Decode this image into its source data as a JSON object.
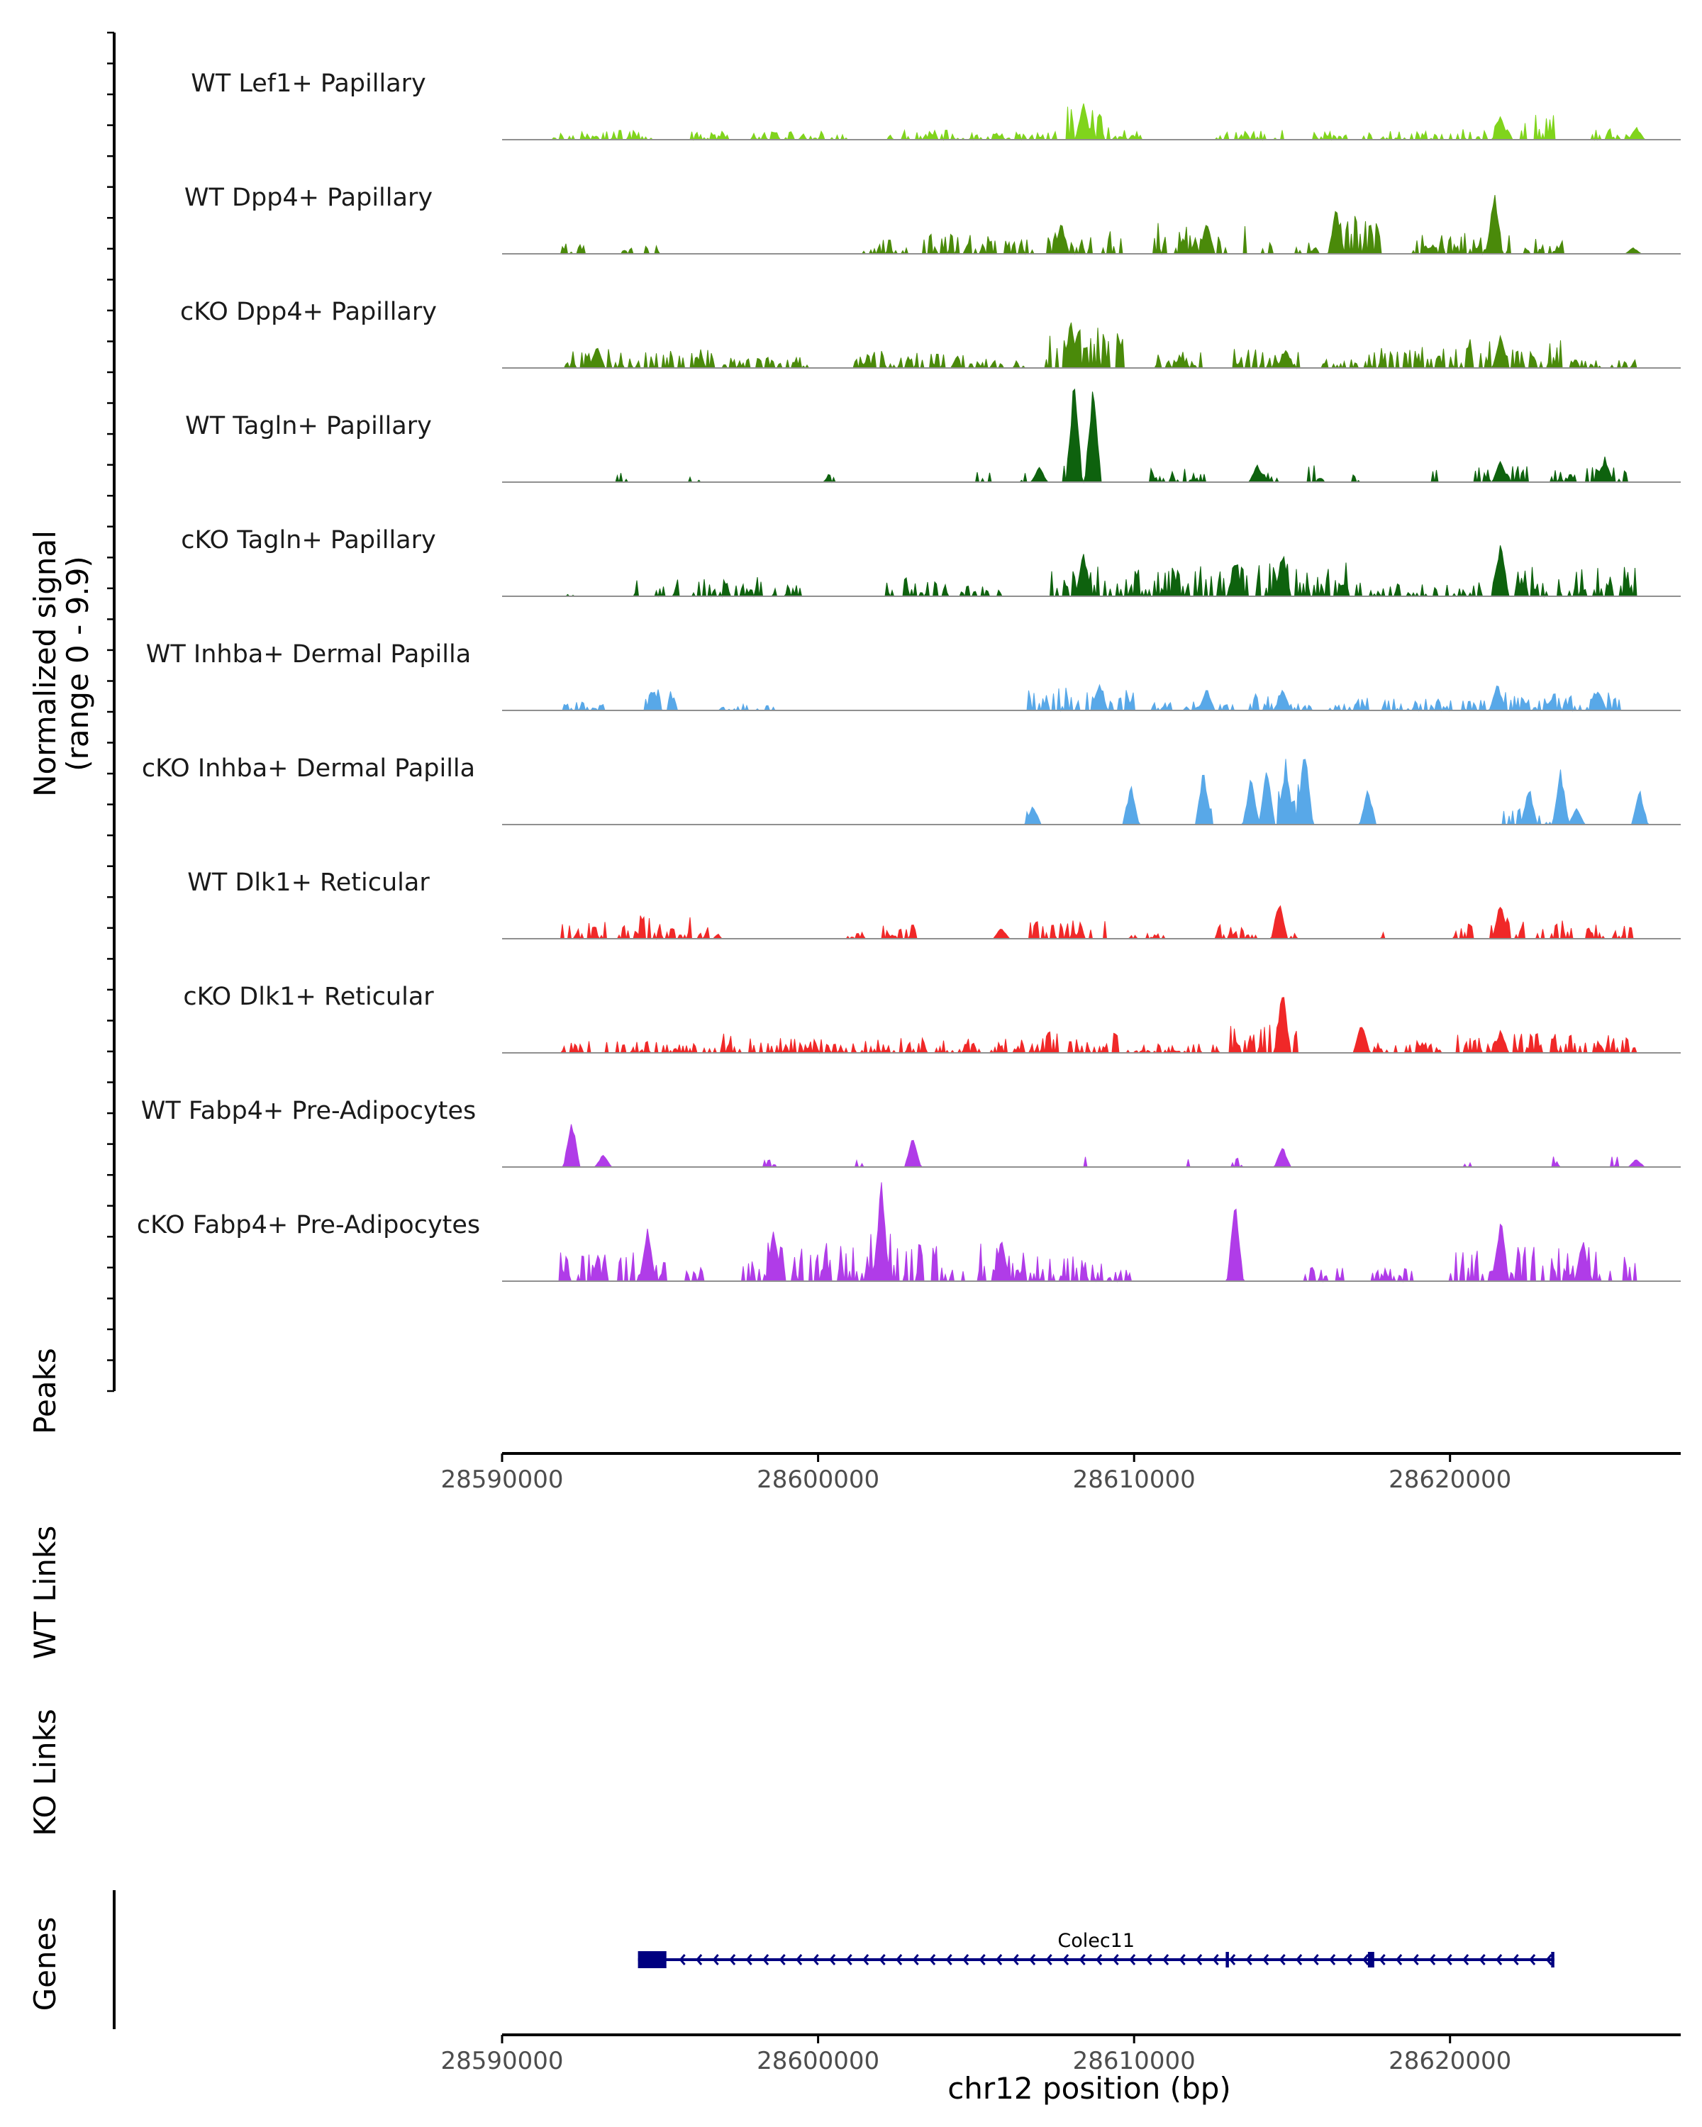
{
  "chart_data": {
    "type": "area",
    "title": "",
    "chromosome": "chr12",
    "xlabel": "chr12 position (bp)",
    "xlim": [
      28590000,
      28627300
    ],
    "x_ticks": [
      28590000,
      28600000,
      28610000,
      28620000
    ],
    "x_tick_labels": [
      "28590000",
      "28600000",
      "28610000",
      "28620000"
    ],
    "ylabel": "Normalized signal",
    "ylabel_range": "(range 0 - 9.9)",
    "ylim": [
      0,
      9.9
    ],
    "colors": {
      "lef1": "#80d41c",
      "dpp4": "#4a8a0a",
      "tagln": "#0e620e",
      "inhba": "#58a8e8",
      "dlk1": "#f02828",
      "fabp4": "#b03ce8",
      "gene": "#000080",
      "axis": "#000000",
      "baseline": "#909090"
    },
    "series": [
      {
        "name": "WT Lef1+ Papillary",
        "color": "#80d41c",
        "regions": [
          [
            28591600,
            28594800,
            0.9
          ],
          [
            28596000,
            28601200,
            0.8
          ],
          [
            28602200,
            28604600,
            0.9
          ],
          [
            28604800,
            28607600,
            0.8
          ],
          [
            28607800,
            28609200,
            3.2
          ],
          [
            28609300,
            28610300,
            0.9
          ],
          [
            28612600,
            28614700,
            1.0
          ],
          [
            28615500,
            28619800,
            0.8
          ],
          [
            28619900,
            28621300,
            1.0
          ],
          [
            28621400,
            28623300,
            2.3
          ],
          [
            28624500,
            28626000,
            1.2
          ]
        ],
        "peaks": [
          [
            28608400,
            3.6
          ],
          [
            28621600,
            2.4
          ],
          [
            28625900,
            1.2
          ]
        ]
      },
      {
        "name": "WT Dpp4+ Papillary",
        "color": "#4a8a0a",
        "regions": [
          [
            28591800,
            28592600,
            1.1
          ],
          [
            28593600,
            28594100,
            0.9
          ],
          [
            28594500,
            28595100,
            0.8
          ],
          [
            28601400,
            28603000,
            1.6
          ],
          [
            28603300,
            28606800,
            1.9
          ],
          [
            28607200,
            28609600,
            2.1
          ],
          [
            28610600,
            28613600,
            2.9
          ],
          [
            28614000,
            28614500,
            1.2
          ],
          [
            28615100,
            28615900,
            1.3
          ],
          [
            28616200,
            28617800,
            3.6
          ],
          [
            28618800,
            28622000,
            2.0
          ],
          [
            28622300,
            28623600,
            1.5
          ]
        ],
        "peaks": [
          [
            28607700,
            3.0
          ],
          [
            28612300,
            3.2
          ],
          [
            28616400,
            4.5
          ],
          [
            28621400,
            6.2
          ],
          [
            28625800,
            0.6
          ]
        ]
      },
      {
        "name": "cKO Dpp4+ Papillary",
        "color": "#4a8a0a",
        "regions": [
          [
            28591800,
            28596900,
            1.8
          ],
          [
            28597000,
            28599700,
            1.0
          ],
          [
            28601100,
            28604600,
            1.7
          ],
          [
            28604700,
            28606500,
            0.9
          ],
          [
            28607200,
            28609900,
            3.8
          ],
          [
            28610700,
            28612200,
            1.5
          ],
          [
            28613100,
            28615200,
            1.8
          ],
          [
            28615800,
            28617100,
            0.9
          ],
          [
            28617300,
            28620200,
            2.0
          ],
          [
            28620300,
            28623600,
            3.0
          ],
          [
            28623800,
            28626000,
            0.8
          ]
        ],
        "peaks": [
          [
            28593000,
            2.1
          ],
          [
            28608000,
            4.5
          ],
          [
            28614800,
            1.9
          ],
          [
            28621600,
            3.2
          ]
        ]
      },
      {
        "name": "WT Tagln+ Papillary",
        "color": "#0e620e",
        "regions": [
          [
            28593500,
            28594000,
            1.4
          ],
          [
            28595900,
            28596400,
            0.9
          ],
          [
            28600200,
            28600600,
            0.9
          ],
          [
            28605000,
            28605500,
            1.1
          ],
          [
            28606400,
            28606600,
            0.9
          ],
          [
            28607700,
            28608700,
            4.5
          ],
          [
            28610500,
            28612600,
            1.3
          ],
          [
            28613600,
            28614600,
            1.1
          ],
          [
            28615500,
            28616000,
            1.6
          ],
          [
            28616900,
            28617300,
            1.0
          ],
          [
            28619400,
            28619800,
            1.6
          ],
          [
            28620700,
            28622500,
            1.5
          ],
          [
            28623200,
            28625600,
            1.4
          ]
        ],
        "peaks": [
          [
            28608100,
            9.9
          ],
          [
            28608700,
            9.8
          ],
          [
            28607000,
            1.5
          ],
          [
            28621600,
            2.3
          ],
          [
            28624900,
            2.4
          ],
          [
            28613900,
            1.8
          ]
        ]
      },
      {
        "name": "cKO Tagln+ Papillary",
        "color": "#0e620e",
        "regions": [
          [
            28592000,
            28592300,
            0.6
          ],
          [
            28594100,
            28595600,
            1.6
          ],
          [
            28596000,
            28598300,
            1.8
          ],
          [
            28598500,
            28599500,
            1.2
          ],
          [
            28601600,
            28604100,
            1.8
          ],
          [
            28604400,
            28605800,
            1.4
          ],
          [
            28607300,
            28613800,
            3.0
          ],
          [
            28613900,
            28616800,
            3.3
          ],
          [
            28617000,
            28621000,
            1.3
          ],
          [
            28621200,
            28625900,
            2.8
          ]
        ],
        "peaks": [
          [
            28608400,
            4.5
          ],
          [
            28613200,
            3.5
          ],
          [
            28614700,
            4.4
          ],
          [
            28621600,
            5.3
          ]
        ]
      },
      {
        "name": "WT Inhba+ Dermal Papilla",
        "color": "#58a8e8",
        "regions": [
          [
            28591800,
            28593200,
            0.8
          ],
          [
            28594400,
            28595700,
            2.0
          ],
          [
            28596900,
            28597800,
            0.6
          ],
          [
            28598000,
            28598600,
            0.9
          ],
          [
            28606400,
            28610300,
            2.2
          ],
          [
            28610500,
            28613300,
            1.0
          ],
          [
            28613600,
            28615700,
            1.8
          ],
          [
            28616200,
            28617600,
            1.3
          ],
          [
            28617800,
            28621100,
            1.1
          ],
          [
            28621400,
            28624200,
            1.7
          ],
          [
            28624300,
            28625400,
            1.7
          ]
        ],
        "peaks": [
          [
            28608900,
            2.8
          ],
          [
            28612300,
            2.3
          ],
          [
            28614700,
            2.1
          ],
          [
            28621500,
            2.6
          ],
          [
            28624700,
            1.9
          ],
          [
            28594800,
            1.9
          ]
        ]
      },
      {
        "name": "cKO Inhba+ Dermal Papilla",
        "color": "#58a8e8",
        "regions": [
          [
            28606400,
            28606900,
            1.7
          ],
          [
            28609800,
            28609900,
            1.4
          ],
          [
            28612300,
            28612900,
            1.6
          ],
          [
            28613500,
            28614100,
            1.6
          ],
          [
            28614300,
            28615800,
            4.0
          ],
          [
            28617200,
            28617300,
            1.4
          ],
          [
            28621700,
            28622500,
            1.6
          ],
          [
            28622800,
            28623200,
            1.3
          ]
        ],
        "peaks": [
          [
            28609900,
            3.9
          ],
          [
            28612200,
            5.5
          ],
          [
            28613700,
            4.7
          ],
          [
            28614200,
            5.4
          ],
          [
            28614800,
            6.2
          ],
          [
            28615400,
            7.5
          ],
          [
            28617400,
            3.6
          ],
          [
            28622500,
            3.8
          ],
          [
            28623500,
            5.4
          ],
          [
            28624000,
            1.7
          ],
          [
            28626000,
            3.4
          ],
          [
            28606800,
            2.0
          ]
        ]
      },
      {
        "name": "WT Dlk1+ Reticular",
        "color": "#f02828",
        "regions": [
          [
            28591800,
            28593300,
            1.6
          ],
          [
            28593700,
            28596000,
            2.2
          ],
          [
            28596200,
            28597000,
            1.1
          ],
          [
            28600900,
            28601500,
            0.8
          ],
          [
            28602000,
            28603100,
            1.3
          ],
          [
            28606700,
            28609100,
            1.7
          ],
          [
            28609800,
            28611000,
            0.5
          ],
          [
            28612600,
            28614700,
            1.4
          ],
          [
            28614900,
            28615200,
            0.8
          ],
          [
            28617700,
            28617900,
            0.6
          ],
          [
            28620100,
            28620800,
            1.4
          ],
          [
            28621100,
            28623900,
            2.1
          ],
          [
            28624200,
            28625900,
            1.3
          ]
        ],
        "peaks": [
          [
            28614600,
            3.9
          ],
          [
            28621600,
            3.7
          ],
          [
            28605800,
            1.1
          ]
        ]
      },
      {
        "name": "cKO Dlk1+ Reticular",
        "color": "#f02828",
        "regions": [
          [
            28591800,
            28596400,
            1.1
          ],
          [
            28596500,
            28597600,
            2.0
          ],
          [
            28597800,
            28603500,
            1.4
          ],
          [
            28603700,
            28606500,
            1.3
          ],
          [
            28606700,
            28609500,
            2.1
          ],
          [
            28609700,
            28612700,
            0.9
          ],
          [
            28612900,
            28615300,
            2.7
          ],
          [
            28617000,
            28619700,
            1.2
          ],
          [
            28620000,
            28625900,
            1.8
          ]
        ],
        "peaks": [
          [
            28614700,
            6.3
          ],
          [
            28617200,
            3.1
          ],
          [
            28621600,
            2.2
          ]
        ]
      },
      {
        "name": "WT Fabp4+ Pre-Adipocytes",
        "color": "#b03ce8",
        "regions": [
          [
            28598300,
            28598700,
            1.0
          ],
          [
            28601200,
            28601500,
            1.0
          ],
          [
            28608200,
            28608500,
            1.1
          ],
          [
            28611500,
            28611800,
            1.0
          ],
          [
            28613100,
            28613400,
            1.0
          ],
          [
            28620400,
            28620700,
            1.0
          ],
          [
            28623200,
            28623500,
            1.0
          ],
          [
            28624800,
            28625400,
            1.1
          ]
        ],
        "peaks": [
          [
            28592200,
            4.8
          ],
          [
            28593200,
            1.3
          ],
          [
            28603000,
            3.0
          ],
          [
            28614700,
            2.0
          ],
          [
            28625900,
            0.8
          ]
        ]
      },
      {
        "name": "cKO Fabp4+ Pre-Adipocytes",
        "color": "#b03ce8",
        "regions": [
          [
            28591800,
            28595200,
            2.8
          ],
          [
            28595500,
            28596200,
            1.0
          ],
          [
            28596200,
            28596400,
            1.4
          ],
          [
            28597600,
            28601400,
            3.6
          ],
          [
            28601500,
            28602500,
            5.0
          ],
          [
            28602500,
            28606600,
            3.5
          ],
          [
            28606700,
            28609000,
            2.5
          ],
          [
            28609100,
            28610000,
            1.9
          ],
          [
            28613000,
            28613300,
            2.0
          ],
          [
            28615400,
            28616800,
            1.3
          ],
          [
            28617500,
            28618800,
            1.4
          ],
          [
            28619900,
            28625900,
            3.2
          ]
        ],
        "peaks": [
          [
            28602000,
            9.8
          ],
          [
            28613200,
            7.9
          ],
          [
            28594600,
            5.1
          ],
          [
            28598600,
            5.4
          ],
          [
            28605800,
            4.4
          ],
          [
            28621600,
            6.4
          ],
          [
            28624200,
            4.1
          ]
        ]
      }
    ],
    "extra_tracks": [
      "Peaks",
      "WT Links",
      "KO Links"
    ],
    "genes": [
      {
        "name": "Colec11",
        "strand": "-",
        "start": 28594300,
        "end": 28623300,
        "exons": [
          [
            28594300,
            28595200
          ],
          [
            28612900,
            28613000
          ],
          [
            28617400,
            28617600
          ],
          [
            28623200,
            28623300
          ]
        ]
      }
    ],
    "gene_track_label": "Genes"
  }
}
